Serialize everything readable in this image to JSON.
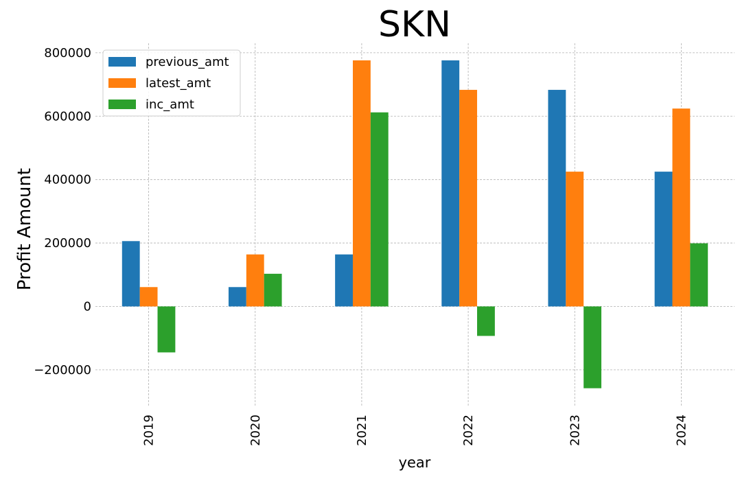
{
  "chart_data": {
    "type": "bar",
    "title": "SKN",
    "xlabel": "year",
    "ylabel": "Profit Amount",
    "categories": [
      "2019",
      "2020",
      "2021",
      "2022",
      "2023",
      "2024"
    ],
    "ylim": [
      -315000,
      830000
    ],
    "yticks": [
      -200000,
      0,
      200000,
      400000,
      600000,
      800000
    ],
    "ytick_labels": [
      "−200000",
      "0",
      "200000",
      "400000",
      "600000",
      "800000"
    ],
    "grid": true,
    "legend_position": "top-left",
    "series": [
      {
        "name": "previous_amt",
        "color": "#1f77b4",
        "values": [
          206000,
          61000,
          164000,
          776000,
          683000,
          425000
        ]
      },
      {
        "name": "latest_amt",
        "color": "#ff7f0e",
        "values": [
          61000,
          164000,
          776000,
          683000,
          425000,
          624000
        ]
      },
      {
        "name": "inc_amt",
        "color": "#2ca02c",
        "values": [
          -145000,
          103000,
          612000,
          -93000,
          -258000,
          199000
        ]
      }
    ]
  }
}
